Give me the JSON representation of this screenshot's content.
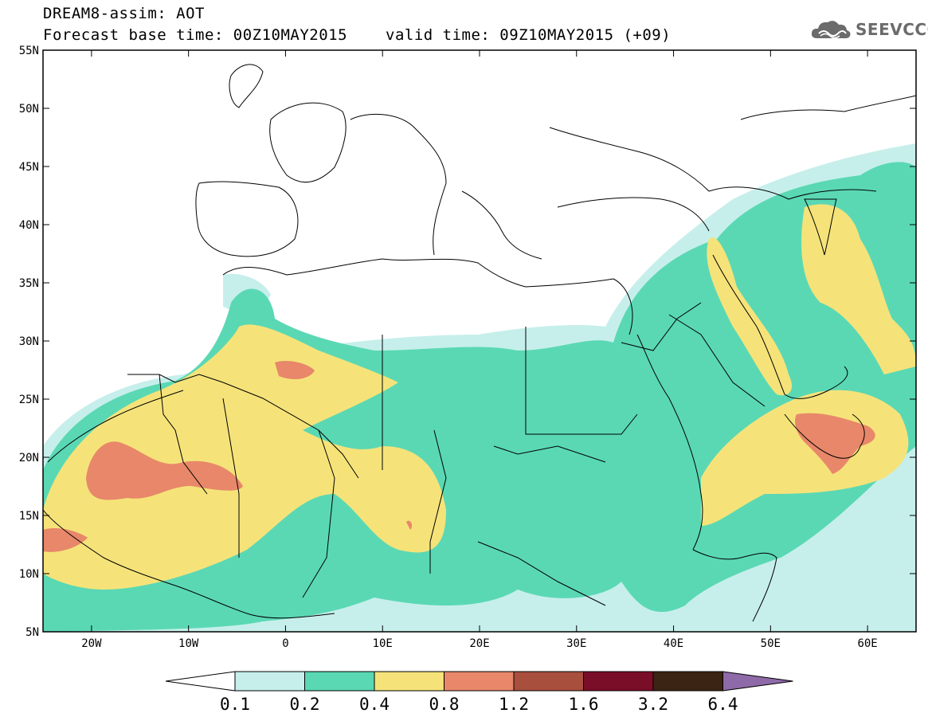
{
  "header": {
    "title": "DREAM8-assim: AOT",
    "base_time": "Forecast base time: 00Z10MAY2015",
    "valid_time": "valid time: 09Z10MAY2015 (+09)",
    "logo_text": "SEEVCCC"
  },
  "map": {
    "lat_labels": [
      "55N",
      "50N",
      "45N",
      "40N",
      "35N",
      "30N",
      "25N",
      "20N",
      "15N",
      "10N",
      "5N"
    ],
    "lon_labels": [
      "20W",
      "10W",
      "0",
      "10E",
      "20E",
      "30E",
      "40E",
      "50E",
      "60E"
    ],
    "lat_range": [
      5,
      55
    ],
    "lon_range": [
      -25,
      65
    ]
  },
  "legend": {
    "levels": [
      "0.1",
      "0.2",
      "0.4",
      "0.8",
      "1.2",
      "1.6",
      "3.2",
      "6.4"
    ],
    "colors": [
      "#ffffff",
      "#c6efeb",
      "#5ad8b4",
      "#f5e37a",
      "#e8876a",
      "#a84f3e",
      "#7a0d27",
      "#3b2414",
      "#8f6aa8"
    ]
  },
  "colors": {
    "aot_0_1": "#c6efeb",
    "aot_0_2": "#5ad8b4",
    "aot_0_4": "#f5e37a",
    "aot_0_8": "#e8876a"
  }
}
